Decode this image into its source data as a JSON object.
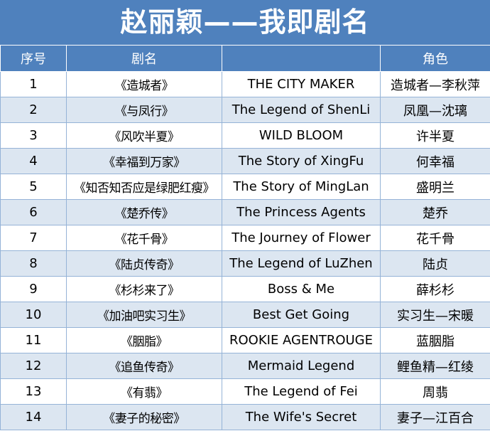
{
  "title": "赵丽颖——我即剧名",
  "headers": [
    "序号",
    "剧名",
    "",
    "角色"
  ],
  "rows": [
    {
      "no": "1",
      "cn": "《造城者》",
      "en": "THE CITY MAKER",
      "role": "造城者—李秋萍"
    },
    {
      "no": "2",
      "cn": "《与凤行》",
      "en": "The Legend of ShenLi",
      "role": "凤凰—沈璃"
    },
    {
      "no": "3",
      "cn": "《风吹半夏》",
      "en": "WILD BLOOM",
      "role": "许半夏"
    },
    {
      "no": "4",
      "cn": "《幸福到万家》",
      "en": "The Story of XingFu",
      "role": "何幸福"
    },
    {
      "no": "5",
      "cn": "《知否知否应是绿肥红瘦》",
      "en": "The Story of MingLan",
      "role": "盛明兰"
    },
    {
      "no": "6",
      "cn": "《楚乔传》",
      "en": "The Princess Agents",
      "role": "楚乔"
    },
    {
      "no": "7",
      "cn": "《花千骨》",
      "en": "The Journey of Flower",
      "role": "花千骨"
    },
    {
      "no": "8",
      "cn": "《陆贞传奇》",
      "en": "The Legend of LuZhen",
      "role": "陆贞"
    },
    {
      "no": "9",
      "cn": "《杉杉来了》",
      "en": "Boss & Me",
      "role": "薛杉杉"
    },
    {
      "no": "10",
      "cn": "《加油吧实习生》",
      "en": "Best Get Going",
      "role": "实习生—宋暖"
    },
    {
      "no": "11",
      "cn": "《胭脂》",
      "en": "ROOKIE AGENTROUGE",
      "role": "蓝胭脂"
    },
    {
      "no": "12",
      "cn": "《追鱼传奇》",
      "en": "Mermaid Legend",
      "role": "鲤鱼精—红绫"
    },
    {
      "no": "13",
      "cn": "《有翡》",
      "en": "The Legend of Fei",
      "role": "周翡"
    },
    {
      "no": "14",
      "cn": "《妻子的秘密》",
      "en": "The  Wife's Secret",
      "role": "妻子—江百合"
    }
  ]
}
